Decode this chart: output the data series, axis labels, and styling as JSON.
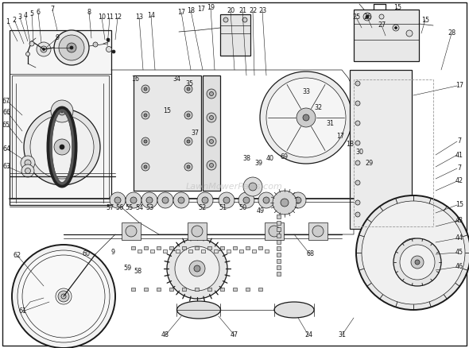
{
  "bg": "#ffffff",
  "fg": "#1a1a1a",
  "lw_thin": 0.5,
  "lw_med": 0.9,
  "lw_thick": 1.4,
  "label_fs": 5.8,
  "fig_w": 5.9,
  "fig_h": 4.38,
  "dpi": 100,
  "watermark": "LawnMowerParts.com",
  "watermark_color": "#bbbbbb"
}
